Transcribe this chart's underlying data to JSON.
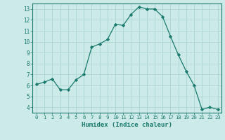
{
  "x": [
    0,
    1,
    2,
    3,
    4,
    5,
    6,
    7,
    8,
    9,
    10,
    11,
    12,
    13,
    14,
    15,
    16,
    17,
    18,
    19,
    20,
    21,
    22,
    23
  ],
  "y": [
    6.1,
    6.3,
    6.6,
    5.6,
    5.6,
    6.5,
    7.0,
    9.5,
    9.8,
    10.2,
    11.6,
    11.5,
    12.5,
    13.2,
    13.0,
    13.0,
    12.3,
    10.5,
    8.8,
    7.3,
    6.0,
    3.8,
    4.0,
    3.8
  ],
  "xlabel": "Humidex (Indice chaleur)",
  "xlim": [
    -0.5,
    23.5
  ],
  "ylim": [
    3.5,
    13.5
  ],
  "yticks": [
    4,
    5,
    6,
    7,
    8,
    9,
    10,
    11,
    12,
    13
  ],
  "xticks": [
    0,
    1,
    2,
    3,
    4,
    5,
    6,
    7,
    8,
    9,
    10,
    11,
    12,
    13,
    14,
    15,
    16,
    17,
    18,
    19,
    20,
    21,
    22,
    23
  ],
  "line_color": "#1a7a6e",
  "marker_color": "#1a7a6e",
  "bg_color": "#cceae7",
  "grid_color": "#b0d8d4",
  "axis_color": "#1a7a6e",
  "label_color": "#1a7a6e",
  "spine_color": "#1a7a6e"
}
